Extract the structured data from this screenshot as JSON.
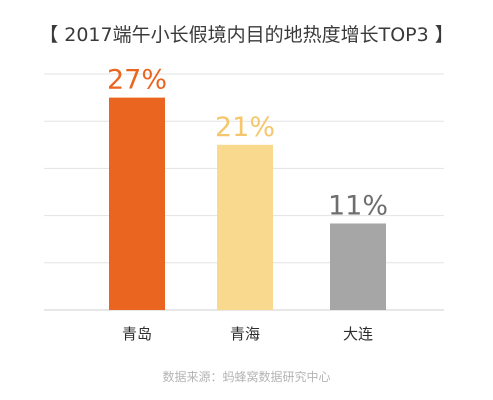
{
  "title": "【 2017端午小长假境内目的地热度增长TOP3 】",
  "source": "数据来源：蚂蜂窝数据研究中心",
  "chart_data": {
    "type": "bar",
    "title": "【 2017端午小长假境内目的地热度增长TOP3 】",
    "xlabel": "",
    "ylabel": "",
    "categories": [
      "青岛",
      "青海",
      "大连"
    ],
    "values": [
      27,
      21,
      11
    ],
    "data_labels": [
      "27%",
      "21%",
      "11%"
    ],
    "colors": [
      "#ea6620",
      "#f9d98e",
      "#a6a6a6"
    ],
    "ylim": [
      0,
      30
    ],
    "grid": true,
    "gridlines": [
      0,
      6,
      12,
      18,
      24,
      30
    ],
    "legend": "none"
  }
}
